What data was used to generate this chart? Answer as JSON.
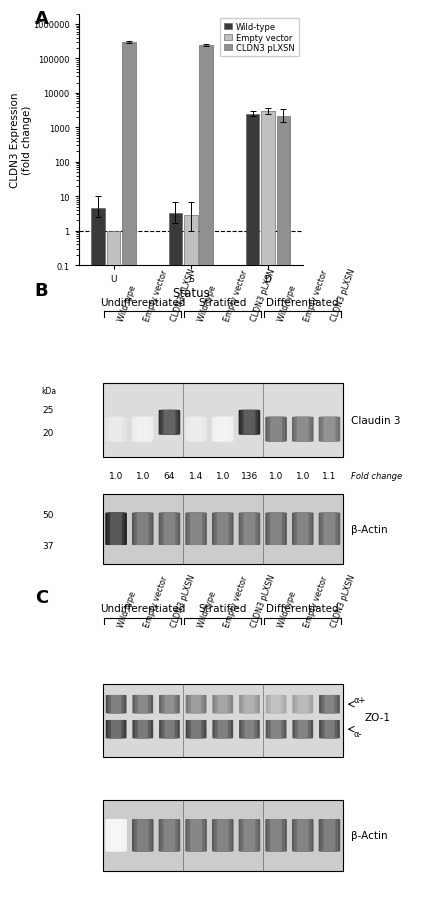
{
  "panel_A": {
    "groups": [
      "U",
      "S",
      "D"
    ],
    "series": {
      "Wild-type": {
        "values": [
          4.5,
          3.2,
          2500
        ],
        "err_low": [
          2.0,
          1.5,
          400
        ],
        "err_high": [
          5.5,
          3.5,
          500
        ],
        "color": "#3a3a3a"
      },
      "Empty vector": {
        "values": [
          1.0,
          2.8,
          3000
        ],
        "err_low": [
          0.0,
          1.8,
          500
        ],
        "err_high": [
          0.0,
          4.0,
          600
        ],
        "color": "#c0c0c0"
      },
      "CLDN3 pLXSN": {
        "values": [
          300000,
          250000,
          2200
        ],
        "err_low": [
          20000,
          15000,
          800
        ],
        "err_high": [
          20000,
          15000,
          1200
        ],
        "color": "#909090"
      }
    },
    "ylabel": "CLDN3 Expression\n(fold change)",
    "xlabel": "Status",
    "ylim_low": 0.1,
    "ylim_high": 2000000,
    "dashed_line_y": 1.0
  },
  "panel_B": {
    "groups": [
      {
        "name": "Undifferentiated",
        "start": 0,
        "end": 3
      },
      {
        "name": "Stratified",
        "start": 3,
        "end": 6
      },
      {
        "name": "Differentiated",
        "start": 6,
        "end": 9
      }
    ],
    "lane_labels": [
      "Wild type",
      "Empty vector",
      "CLDN3 pLXSN",
      "Wild type",
      "Empty vector",
      "CLDN3 pLXSN",
      "Wild type",
      "Empty vector",
      "CLDN3 pLXSN"
    ],
    "fold_changes": [
      "1.0",
      "1.0",
      "64",
      "1.4",
      "1.0",
      "136",
      "1.0",
      "1.0",
      "1.1"
    ],
    "claudin_band_intensity": [
      0.12,
      0.08,
      0.88,
      0.1,
      0.07,
      0.92,
      0.68,
      0.65,
      0.62
    ],
    "claudin_band_yoffset": [
      0.0,
      0.0,
      0.15,
      0.0,
      0.0,
      0.15,
      0.0,
      0.0,
      0.0
    ],
    "actin_band_intensity": [
      0.95,
      0.72,
      0.7,
      0.68,
      0.7,
      0.68,
      0.7,
      0.7,
      0.68
    ],
    "kda_claudin": [
      "25",
      "20"
    ],
    "kda_actin": [
      "50",
      "37"
    ],
    "protein_claudin": "Claudin 3",
    "protein_actin": "β-Actin",
    "fold_change_label": "Fold change",
    "blot_bg_claudin": "#dcdcdc",
    "blot_bg_actin": "#cccccc"
  },
  "panel_C": {
    "groups": [
      {
        "name": "Undifferentiated",
        "start": 0,
        "end": 3
      },
      {
        "name": "Stratified",
        "start": 3,
        "end": 6
      },
      {
        "name": "Differentiated",
        "start": 6,
        "end": 9
      }
    ],
    "lane_labels": [
      "Wild type",
      "Empty vector",
      "CLDN3 pLXSN",
      "Wild type",
      "Empty vector",
      "CLDN3 pLXSN",
      "Wild type",
      "Empty vector",
      "CLDN3 pLXSN"
    ],
    "zo1_upper_intensity": [
      0.78,
      0.72,
      0.68,
      0.6,
      0.55,
      0.48,
      0.38,
      0.42,
      0.75
    ],
    "zo1_lower_intensity": [
      0.88,
      0.82,
      0.8,
      0.82,
      0.78,
      0.76,
      0.75,
      0.76,
      0.8
    ],
    "actin_band_intensity": [
      0.05,
      0.72,
      0.7,
      0.68,
      0.7,
      0.68,
      0.7,
      0.7,
      0.72
    ],
    "protein_zo1": "ZO-1",
    "protein_actin": "β-Actin",
    "alpha_plus": "α+",
    "alpha_minus": "α-",
    "blot_bg_zo1": "#d8d8d8",
    "blot_bg_actin": "#cccccc"
  },
  "colors": {
    "panel_label": "#000000",
    "axis_text": "#000000",
    "blot_border": "#000000"
  },
  "fontsizes": {
    "panel_label": 13,
    "axis_label": 7.5,
    "tick_label": 6.5,
    "lane_label": 5.8,
    "group_label": 7.5,
    "protein_label": 7.5,
    "fold_change": 6.5,
    "kda": 6.5
  }
}
